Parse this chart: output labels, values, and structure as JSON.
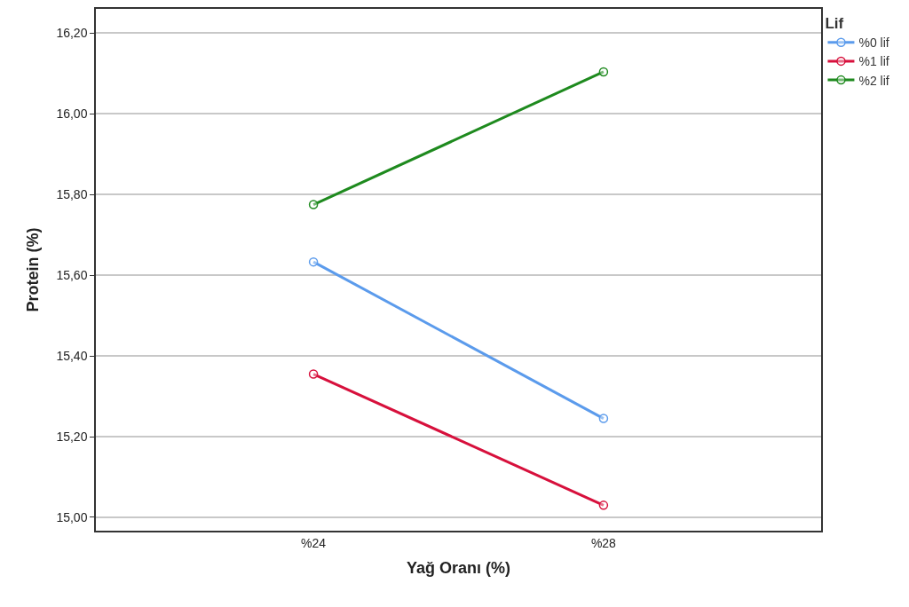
{
  "chart_data": {
    "type": "line",
    "xlabel": "Yağ Oranı (%)",
    "ylabel": "Protein (%)",
    "legend_title": "Lif",
    "categories": [
      "%24",
      "%28"
    ],
    "series": [
      {
        "name": "%0 lif",
        "color": "#5b9bec",
        "values": [
          15.633,
          15.245
        ]
      },
      {
        "name": "%1 lif",
        "color": "#d7103c",
        "values": [
          15.355,
          15.03
        ]
      },
      {
        "name": "%2 lif",
        "color": "#1e8a1e",
        "values": [
          15.775,
          16.104
        ]
      }
    ],
    "ylim": [
      14.967,
      16.26
    ],
    "yticks": [
      {
        "value": 15.0,
        "label": "15,00"
      },
      {
        "value": 15.2,
        "label": "15,20"
      },
      {
        "value": 15.4,
        "label": "15,40"
      },
      {
        "value": 15.6,
        "label": "15,60"
      },
      {
        "value": 15.8,
        "label": "15,80"
      },
      {
        "value": 16.0,
        "label": "16,00"
      },
      {
        "value": 16.2,
        "label": "16,20"
      }
    ],
    "grid": "y",
    "legend": "top right",
    "marker": "circle",
    "line_style": "solid"
  }
}
